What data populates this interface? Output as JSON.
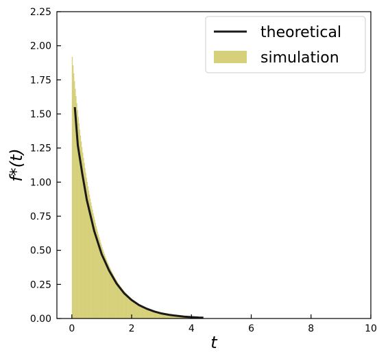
{
  "chart_data": {
    "type": "bar",
    "title": "",
    "xlabel": "t",
    "ylabel": "f*(t)",
    "xlim": [
      -0.5,
      10
    ],
    "ylim": [
      0,
      2.25
    ],
    "x_ticks": [
      0,
      2,
      4,
      6,
      8,
      10
    ],
    "x_tick_labels": [
      "0",
      "2",
      "4",
      "6",
      "8",
      "10"
    ],
    "y_ticks": [
      0,
      0.25,
      0.5,
      0.75,
      1.0,
      1.25,
      1.5,
      1.75,
      2.0,
      2.25
    ],
    "y_tick_labels": [
      "0.00",
      "0.25",
      "0.50",
      "0.75",
      "1.00",
      "1.25",
      "1.50",
      "1.75",
      "2.00",
      "2.25"
    ],
    "grid": false,
    "legend_position": "top-right",
    "colors": {
      "theoretical": "#1a1a1a",
      "simulation": "#d6d07a",
      "axis": "#000000"
    },
    "series": [
      {
        "name": "theoretical",
        "type": "line",
        "x": [
          0.1,
          0.2,
          0.35,
          0.5,
          0.75,
          1.0,
          1.25,
          1.5,
          1.75,
          2.0,
          2.25,
          2.5,
          2.75,
          3.0,
          3.25,
          3.5,
          3.75,
          4.0,
          4.25,
          4.4
        ],
        "y": [
          1.55,
          1.27,
          1.06,
          0.87,
          0.64,
          0.47,
          0.35,
          0.255,
          0.185,
          0.135,
          0.098,
          0.072,
          0.052,
          0.037,
          0.027,
          0.02,
          0.014,
          0.01,
          0.007,
          0.006
        ]
      },
      {
        "name": "simulation",
        "type": "histogram",
        "bin_width": 0.025,
        "x_start": 0.0,
        "x_end": 4.0,
        "peak": 1.95,
        "decay_rate": 1.3
      }
    ]
  }
}
